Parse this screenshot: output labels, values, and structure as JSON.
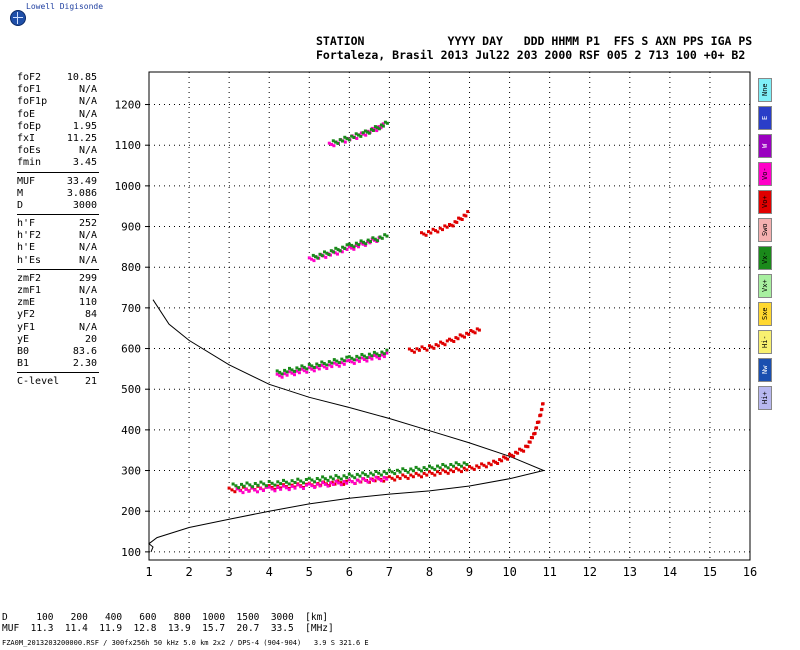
{
  "logo": {
    "text": "Lowell Digisonde",
    "icon": "globe-icon"
  },
  "header": {
    "line1": "STATION            YYYY DAY   DDD HHMM P1  FFS S AXN PPS IGA PS",
    "line2": "Fortaleza, Brasil 2013 Jul22 203 2000 RSF 005 2 713 100 +0+ B2"
  },
  "params": [
    {
      "k": "foF2",
      "v": "10.85"
    },
    {
      "k": "foF1",
      "v": "N/A"
    },
    {
      "k": "foF1p",
      "v": "N/A"
    },
    {
      "k": "foE",
      "v": "N/A"
    },
    {
      "k": "foEp",
      "v": "1.95"
    },
    {
      "k": "fxI",
      "v": "11.25"
    },
    {
      "k": "foEs",
      "v": "N/A"
    },
    {
      "k": "fmin",
      "v": "3.45"
    },
    {
      "sep": true
    },
    {
      "k": "MUF",
      "v": "33.49"
    },
    {
      "k": "M",
      "v": "3.086"
    },
    {
      "k": "D",
      "v": "3000"
    },
    {
      "sep": true
    },
    {
      "k": "h'F",
      "v": "252"
    },
    {
      "k": "h'F2",
      "v": "N/A"
    },
    {
      "k": "h'E",
      "v": "N/A"
    },
    {
      "k": "h'Es",
      "v": "N/A"
    },
    {
      "sep": true
    },
    {
      "k": "zmF2",
      "v": "299"
    },
    {
      "k": "zmF1",
      "v": "N/A"
    },
    {
      "k": "zmE",
      "v": "110"
    },
    {
      "k": "yF2",
      "v": "84"
    },
    {
      "k": "yF1",
      "v": "N/A"
    },
    {
      "k": "yE",
      "v": "20"
    },
    {
      "k": "B0",
      "v": "83.6"
    },
    {
      "k": "B1",
      "v": "2.30"
    },
    {
      "sep": true
    },
    {
      "k": "C-level",
      "v": "21"
    }
  ],
  "legend": [
    {
      "label": "Nne",
      "color": "#7ff0f8"
    },
    {
      "label": "E",
      "color": "#2a3ec8"
    },
    {
      "label": "W",
      "color": "#9a00c0"
    },
    {
      "label": "Vo-",
      "color": "#ff00c8"
    },
    {
      "label": "Vo+",
      "color": "#e00000"
    },
    {
      "label": "Swo",
      "color": "#f5b0b0"
    },
    {
      "label": "Vx-",
      "color": "#1a8a1a"
    },
    {
      "label": "Vx+",
      "color": "#a8f0a0"
    },
    {
      "label": "Sxe",
      "color": "#ffd830"
    },
    {
      "label": "Hi-",
      "color": "#f8f070"
    },
    {
      "label": "Nw",
      "color": "#1a4fb0"
    },
    {
      "label": "Hi+",
      "color": "#b8b8f0"
    }
  ],
  "chart_data": {
    "type": "scatter",
    "xlim": [
      1,
      16
    ],
    "ylim": [
      80,
      1280
    ],
    "x_ticks": [
      "1",
      "2",
      "3",
      "4",
      "5",
      "6",
      "7",
      "8",
      "9",
      "10",
      "11",
      "12",
      "13",
      "14",
      "15",
      "16"
    ],
    "y_ticks": [
      "100",
      "200",
      "300",
      "400",
      "500",
      "600",
      "700",
      "800",
      "900",
      "1000",
      "1100",
      "1200"
    ],
    "grid": true,
    "traces": [
      {
        "name": "F2 trace",
        "color": "#e00000",
        "points": [
          [
            3.0,
            252
          ],
          [
            4,
            258
          ],
          [
            5,
            264
          ],
          [
            6,
            272
          ],
          [
            7,
            280
          ],
          [
            8,
            292
          ],
          [
            9,
            305
          ],
          [
            9.6,
            318
          ],
          [
            10.0,
            335
          ],
          [
            10.4,
            355
          ],
          [
            10.6,
            385
          ],
          [
            10.75,
            430
          ],
          [
            10.85,
            470
          ]
        ]
      },
      {
        "name": "F2 trace",
        "color": "#ff00c8",
        "points": [
          [
            3.2,
            250
          ],
          [
            4,
            254
          ],
          [
            5,
            262
          ],
          [
            6,
            272
          ],
          [
            7,
            282
          ]
        ]
      },
      {
        "name": "F2 trace",
        "color": "#1a8a1a",
        "points": [
          [
            3.1,
            262
          ],
          [
            4,
            268
          ],
          [
            5,
            276
          ],
          [
            6,
            286
          ],
          [
            7,
            296
          ],
          [
            8,
            306
          ],
          [
            9,
            318
          ]
        ]
      },
      {
        "name": "2F trace",
        "color": "#ff00c8",
        "points": [
          [
            4.2,
            532
          ],
          [
            5,
            548
          ],
          [
            6,
            566
          ],
          [
            7,
            585
          ]
        ]
      },
      {
        "name": "2F trace",
        "color": "#1a8a1a",
        "points": [
          [
            4.2,
            540
          ],
          [
            5,
            556
          ],
          [
            6,
            575
          ],
          [
            7,
            592
          ]
        ]
      },
      {
        "name": "2F trace",
        "color": "#e00000",
        "points": [
          [
            7.5,
            594
          ],
          [
            8,
            602
          ],
          [
            8.5,
            618
          ],
          [
            9.3,
            650
          ]
        ]
      },
      {
        "name": "3F trace",
        "color": "#ff00c8",
        "points": [
          [
            5.0,
            818
          ],
          [
            6,
            845
          ],
          [
            6.8,
            872
          ]
        ]
      },
      {
        "name": "3F trace",
        "color": "#1a8a1a",
        "points": [
          [
            5.1,
            824
          ],
          [
            6,
            852
          ],
          [
            7,
            878
          ]
        ]
      },
      {
        "name": "3F trace",
        "color": "#e00000",
        "points": [
          [
            7.8,
            880
          ],
          [
            8.5,
            900
          ],
          [
            9.0,
            935
          ]
        ]
      },
      {
        "name": "4F trace",
        "color": "#ff00c8",
        "points": [
          [
            5.5,
            1100
          ],
          [
            6.3,
            1125
          ],
          [
            6.9,
            1150
          ]
        ]
      },
      {
        "name": "4F trace",
        "color": "#1a8a1a",
        "points": [
          [
            5.6,
            1106
          ],
          [
            6.4,
            1130
          ],
          [
            7.0,
            1156
          ]
        ]
      }
    ],
    "profile": [
      [
        1.05,
        100
      ],
      [
        1.1,
        112
      ],
      [
        1.0,
        120
      ],
      [
        1.2,
        135
      ],
      [
        2,
        160
      ],
      [
        3,
        180
      ],
      [
        4,
        200
      ],
      [
        5,
        218
      ],
      [
        6,
        232
      ],
      [
        7,
        242
      ],
      [
        8,
        250
      ],
      [
        9,
        262
      ],
      [
        10,
        280
      ],
      [
        10.85,
        300
      ],
      [
        10,
        335
      ],
      [
        9,
        368
      ],
      [
        8,
        398
      ],
      [
        7,
        428
      ],
      [
        6,
        455
      ],
      [
        5,
        480
      ],
      [
        4,
        512
      ],
      [
        3,
        560
      ],
      [
        2,
        620
      ],
      [
        1.5,
        660
      ],
      [
        1.1,
        720
      ]
    ]
  },
  "footer": {
    "line1": "D     100   200   400   600   800  1000  1500  3000  [km]",
    "line2": "MUF  11.3  11.4  11.9  12.8  13.9  15.7  20.7  33.5  [MHz]",
    "fname": "FZA0M_2013203200000.RSF / 300fx256h 50 kHz 5.0 km 2x2 / DPS-4 (904-904)   3.9 S 321.6 E"
  }
}
